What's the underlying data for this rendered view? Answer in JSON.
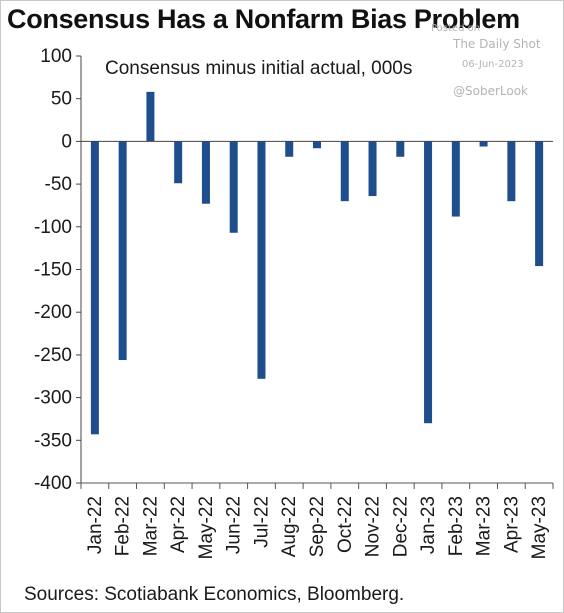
{
  "title": "Consensus Has a Nonfarm Bias Problem",
  "subtitle": "Consensus minus initial actual, 000s",
  "source": "Sources: Scotiabank Economics, Bloomberg.",
  "watermark": {
    "line1": "Posted on",
    "line2": "The Daily Shot",
    "line3": "06-Jun-2023",
    "line4": "@SoberLook"
  },
  "colors": {
    "bar": "#1f4e8c",
    "axis": "#444444",
    "tick": "#555555"
  },
  "chart_data": {
    "type": "bar",
    "categories": [
      "Jan-22",
      "Feb-22",
      "Mar-22",
      "Apr-22",
      "May-22",
      "Jun-22",
      "Jul-22",
      "Aug-22",
      "Sep-22",
      "Oct-22",
      "Nov-22",
      "Dec-22",
      "Jan-23",
      "Feb-23",
      "Mar-23",
      "Apr-23",
      "May-23"
    ],
    "values": [
      -343,
      -256,
      58,
      -49,
      -73,
      -107,
      -278,
      -18,
      -8,
      -70,
      -64,
      -18,
      -330,
      -88,
      -6,
      -70,
      -146
    ],
    "ylim": [
      -400,
      100
    ],
    "yticks": [
      100,
      50,
      0,
      -50,
      -100,
      -150,
      -200,
      -250,
      -300,
      -350,
      -400
    ],
    "title": "Consensus Has a Nonfarm Bias Problem",
    "subtitle": "Consensus minus initial actual, 000s",
    "xlabel": "",
    "ylabel": "",
    "grid": false,
    "legend": "none"
  }
}
